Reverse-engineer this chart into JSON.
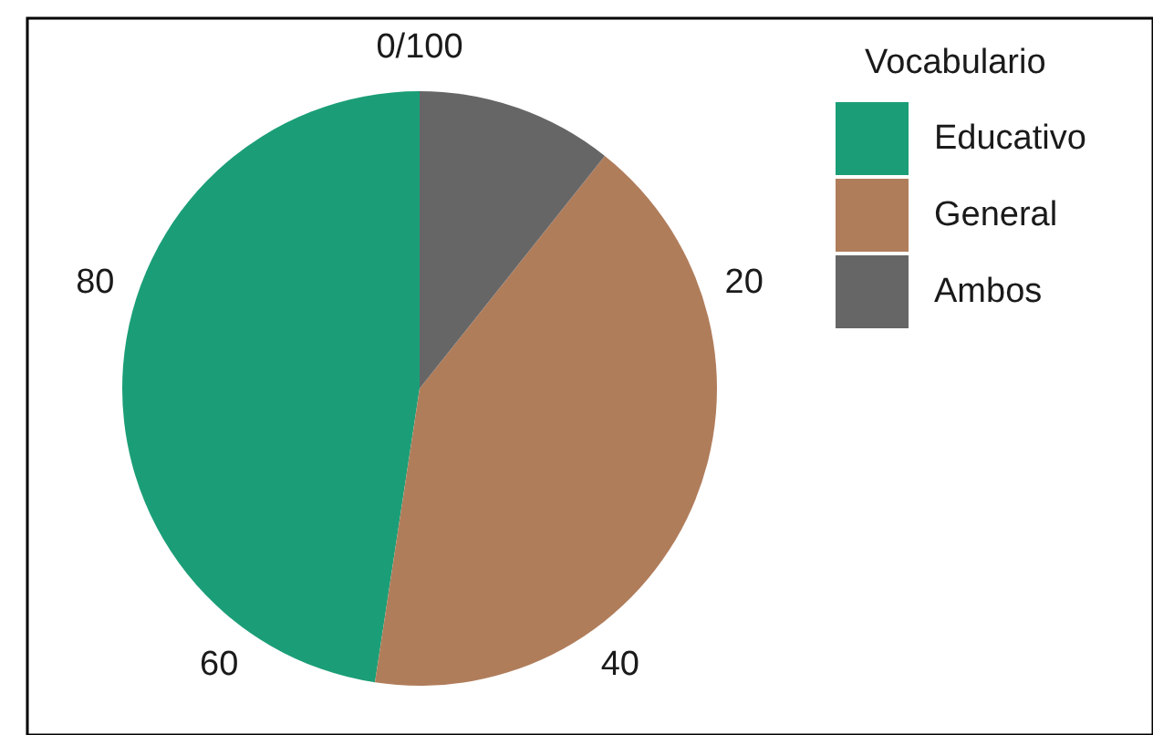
{
  "chart_data": {
    "type": "pie",
    "legend_title": "Vocabulario",
    "legend": "right",
    "categories": [
      "Educativo",
      "General",
      "Ambos"
    ],
    "values": [
      47.6,
      41.7,
      10.7
    ],
    "colors": [
      "#1b9e77",
      "#b07d5b",
      "#666666"
    ],
    "annotations": [
      "0/100",
      "20",
      "40",
      "60",
      "80"
    ]
  }
}
